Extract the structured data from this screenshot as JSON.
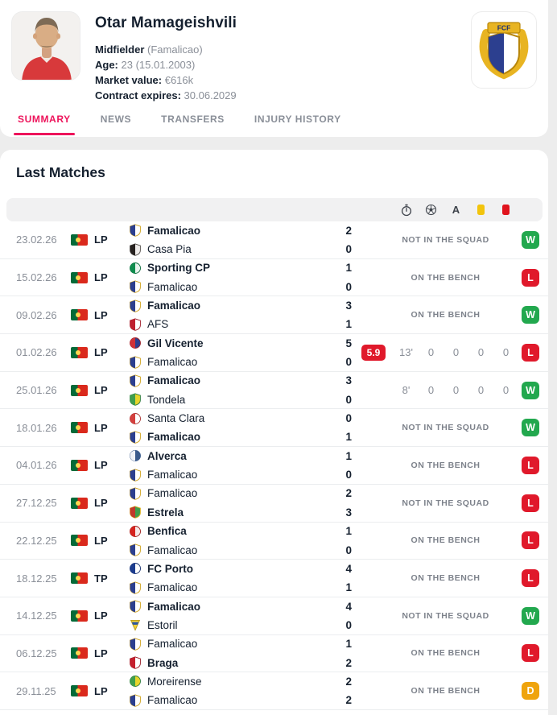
{
  "colors": {
    "page_bg": "#ededed",
    "card_bg": "#ffffff",
    "accent": "#ed145b",
    "text_primary": "#15202f",
    "text_secondary": "#8a8f98",
    "status_text": "#7d828b",
    "divider": "#ebedef",
    "table_header_bg": "#f1f1f2",
    "win": "#22a84e",
    "loss": "#e0192b",
    "draw": "#efa40d",
    "rating_bg": "#e0192b",
    "yellow_card": "#f2c40d",
    "red_card": "#e0141e",
    "flag_green": "#046a38",
    "flag_red": "#da291c",
    "flag_yellow": "#ffd850",
    "icon": "#3f444c"
  },
  "header": {
    "player_name": "Otar Mamageishvili",
    "position": "Midfielder",
    "position_club": "(Famalicao)",
    "age_label": "Age:",
    "age_value": "23 (15.01.2003)",
    "market_value_label": "Market value:",
    "market_value": "€616k",
    "contract_label": "Contract expires:",
    "contract_value": "30.06.2029",
    "club_badge_text": "FCF"
  },
  "tabs": [
    {
      "label": "SUMMARY",
      "active": true
    },
    {
      "label": "NEWS",
      "active": false
    },
    {
      "label": "TRANSFERS",
      "active": false
    },
    {
      "label": "INJURY HISTORY",
      "active": false
    }
  ],
  "section_title": "Last Matches",
  "table": {
    "header_icons": [
      "timer-icon",
      "football-icon",
      "assist-icon",
      "yellow-card-icon",
      "red-card-icon"
    ],
    "assist_icon_glyph": "A",
    "rows": [
      {
        "date": "23.02.26",
        "country": "Portugal",
        "league": "LP",
        "home": {
          "name": "Famalicao",
          "bold": true,
          "score": "2",
          "crest": {
            "shape": "shield",
            "c1": "#2c3f8f",
            "c2": "#ffffff",
            "edge": "#cfa11a"
          }
        },
        "away": {
          "name": "Casa Pia",
          "bold": false,
          "score": "0",
          "crest": {
            "shape": "shield",
            "c1": "#26211f",
            "c2": "#efecea",
            "edge": "#55504c"
          }
        },
        "status": "NOT IN THE SQUAD",
        "stats": null,
        "result": "W"
      },
      {
        "date": "15.02.26",
        "country": "Portugal",
        "league": "LP",
        "home": {
          "name": "Sporting CP",
          "bold": true,
          "score": "1",
          "crest": {
            "shape": "circle",
            "c1": "#0f8c4e",
            "c2": "#e9f4ee",
            "edge": "#0a6b3a"
          }
        },
        "away": {
          "name": "Famalicao",
          "bold": false,
          "score": "0",
          "crest": {
            "shape": "shield",
            "c1": "#2c3f8f",
            "c2": "#ffffff",
            "edge": "#cfa11a"
          }
        },
        "status": "ON THE BENCH",
        "stats": null,
        "result": "L"
      },
      {
        "date": "09.02.26",
        "country": "Portugal",
        "league": "LP",
        "home": {
          "name": "Famalicao",
          "bold": true,
          "score": "3",
          "crest": {
            "shape": "shield",
            "c1": "#2c3f8f",
            "c2": "#ffffff",
            "edge": "#cfa11a"
          }
        },
        "away": {
          "name": "AFS",
          "bold": false,
          "score": "1",
          "crest": {
            "shape": "shield",
            "c1": "#c01f2f",
            "c2": "#ffffff",
            "edge": "#9d1926"
          }
        },
        "status": "ON THE BENCH",
        "stats": null,
        "result": "W"
      },
      {
        "date": "01.02.26",
        "country": "Portugal",
        "league": "LP",
        "home": {
          "name": "Gil Vicente",
          "bold": true,
          "score": "5",
          "crest": {
            "shape": "circle",
            "c1": "#d03238",
            "c2": "#2c3f8f",
            "edge": "#98242d"
          }
        },
        "away": {
          "name": "Famalicao",
          "bold": false,
          "score": "0",
          "crest": {
            "shape": "shield",
            "c1": "#2c3f8f",
            "c2": "#ffffff",
            "edge": "#cfa11a"
          }
        },
        "status": null,
        "stats": {
          "rating": "5.9",
          "minutes": "13'",
          "goals": "0",
          "assists": "0",
          "yellow_cards": "0",
          "red_cards": "0"
        },
        "result": "L"
      },
      {
        "date": "25.01.26",
        "country": "Portugal",
        "league": "LP",
        "home": {
          "name": "Famalicao",
          "bold": true,
          "score": "3",
          "crest": {
            "shape": "shield",
            "c1": "#2c3f8f",
            "c2": "#ffffff",
            "edge": "#cfa11a"
          }
        },
        "away": {
          "name": "Tondela",
          "bold": false,
          "score": "0",
          "crest": {
            "shape": "shield",
            "c1": "#3f9e4d",
            "c2": "#e8d52c",
            "edge": "#2f7c3b"
          }
        },
        "status": null,
        "stats": {
          "rating": null,
          "minutes": "8'",
          "goals": "0",
          "assists": "0",
          "yellow_cards": "0",
          "red_cards": "0"
        },
        "result": "W"
      },
      {
        "date": "18.01.26",
        "country": "Portugal",
        "league": "LP",
        "home": {
          "name": "Santa Clara",
          "bold": false,
          "score": "0",
          "crest": {
            "shape": "circle",
            "c1": "#d4403e",
            "c2": "#ffffff",
            "edge": "#a8302f"
          }
        },
        "away": {
          "name": "Famalicao",
          "bold": true,
          "score": "1",
          "crest": {
            "shape": "shield",
            "c1": "#2c3f8f",
            "c2": "#ffffff",
            "edge": "#cfa11a"
          }
        },
        "status": "NOT IN THE SQUAD",
        "stats": null,
        "result": "W"
      },
      {
        "date": "04.01.26",
        "country": "Portugal",
        "league": "LP",
        "home": {
          "name": "Alverca",
          "bold": true,
          "score": "1",
          "crest": {
            "shape": "circle",
            "c1": "#f0f3f8",
            "c2": "#3a5b8c",
            "edge": "#3a5b8c"
          }
        },
        "away": {
          "name": "Famalicao",
          "bold": false,
          "score": "0",
          "crest": {
            "shape": "shield",
            "c1": "#2c3f8f",
            "c2": "#ffffff",
            "edge": "#cfa11a"
          }
        },
        "status": "ON THE BENCH",
        "stats": null,
        "result": "L"
      },
      {
        "date": "27.12.25",
        "country": "Portugal",
        "league": "LP",
        "home": {
          "name": "Famalicao",
          "bold": false,
          "score": "2",
          "crest": {
            "shape": "shield",
            "c1": "#2c3f8f",
            "c2": "#ffffff",
            "edge": "#cfa11a"
          }
        },
        "away": {
          "name": "Estrela",
          "bold": true,
          "score": "3",
          "crest": {
            "shape": "shield",
            "c1": "#c0392b",
            "c2": "#3f9e4d",
            "edge": "#d9b021"
          }
        },
        "status": "NOT IN THE SQUAD",
        "stats": null,
        "result": "L"
      },
      {
        "date": "22.12.25",
        "country": "Portugal",
        "league": "LP",
        "home": {
          "name": "Benfica",
          "bold": true,
          "score": "1",
          "crest": {
            "shape": "circle",
            "c1": "#d6241f",
            "c2": "#f6e9e8",
            "edge": "#9c1a16"
          }
        },
        "away": {
          "name": "Famalicao",
          "bold": false,
          "score": "0",
          "crest": {
            "shape": "shield",
            "c1": "#2c3f8f",
            "c2": "#ffffff",
            "edge": "#cfa11a"
          }
        },
        "status": "ON THE BENCH",
        "stats": null,
        "result": "L"
      },
      {
        "date": "18.12.25",
        "country": "Portugal",
        "league": "TP",
        "home": {
          "name": "FC Porto",
          "bold": true,
          "score": "4",
          "crest": {
            "shape": "circle",
            "c1": "#1d3d8f",
            "c2": "#ffffff",
            "edge": "#16306f"
          }
        },
        "away": {
          "name": "Famalicao",
          "bold": false,
          "score": "1",
          "crest": {
            "shape": "shield",
            "c1": "#2c3f8f",
            "c2": "#ffffff",
            "edge": "#cfa11a"
          }
        },
        "status": "ON THE BENCH",
        "stats": null,
        "result": "L"
      },
      {
        "date": "14.12.25",
        "country": "Portugal",
        "league": "LP",
        "home": {
          "name": "Famalicao",
          "bold": true,
          "score": "4",
          "crest": {
            "shape": "shield",
            "c1": "#2c3f8f",
            "c2": "#ffffff",
            "edge": "#cfa11a"
          }
        },
        "away": {
          "name": "Estoril",
          "bold": false,
          "score": "0",
          "crest": {
            "shape": "triangle",
            "c1": "#f3d23a",
            "c2": "#2b57a5",
            "edge": "#b89a1e"
          }
        },
        "status": "NOT IN THE SQUAD",
        "stats": null,
        "result": "W"
      },
      {
        "date": "06.12.25",
        "country": "Portugal",
        "league": "LP",
        "home": {
          "name": "Famalicao",
          "bold": false,
          "score": "1",
          "crest": {
            "shape": "shield",
            "c1": "#2c3f8f",
            "c2": "#ffffff",
            "edge": "#cfa11a"
          }
        },
        "away": {
          "name": "Braga",
          "bold": true,
          "score": "2",
          "crest": {
            "shape": "shield",
            "c1": "#c51f2d",
            "c2": "#ffffff",
            "edge": "#951722"
          }
        },
        "status": "ON THE BENCH",
        "stats": null,
        "result": "L"
      },
      {
        "date": "29.11.25",
        "country": "Portugal",
        "league": "LP",
        "home": {
          "name": "Moreirense",
          "bold": false,
          "score": "2",
          "crest": {
            "shape": "circle",
            "c1": "#3f9e4d",
            "c2": "#e8d52c",
            "edge": "#2f7c3b"
          }
        },
        "away": {
          "name": "Famalicao",
          "bold": false,
          "score": "2",
          "crest": {
            "shape": "shield",
            "c1": "#2c3f8f",
            "c2": "#ffffff",
            "edge": "#cfa11a"
          }
        },
        "status": "ON THE BENCH",
        "stats": null,
        "result": "D"
      }
    ]
  }
}
